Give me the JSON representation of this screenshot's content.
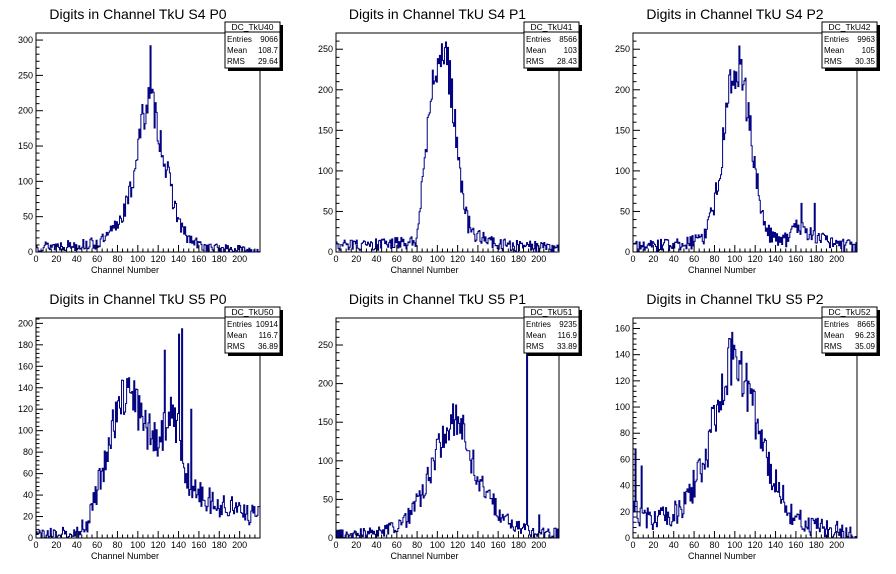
{
  "chart_data": [
    {
      "type": "histogram",
      "title": "Digits in Channel TkU S4 P0",
      "xlabel": "Channel Number",
      "xlim": [
        0,
        220
      ],
      "ylim": [
        0,
        310
      ],
      "xticks": [
        "0",
        "20",
        "40",
        "60",
        "80",
        "100",
        "120",
        "140",
        "160",
        "180",
        "200"
      ],
      "yticks": [
        "0",
        "50",
        "100",
        "150",
        "200",
        "250",
        "300"
      ],
      "yvals": [
        0,
        50,
        100,
        150,
        200,
        250,
        300
      ],
      "stats": {
        "name": "DC_TkU40",
        "rows": [
          {
            "label": "Entries",
            "value": "9066"
          },
          {
            "label": "Mean",
            "value": "108.7"
          },
          {
            "label": "RMS",
            "value": "29.64"
          }
        ]
      },
      "peaks": [
        {
          "x": 112,
          "y": 292
        }
      ],
      "profile": [
        [
          0,
          8
        ],
        [
          20,
          9
        ],
        [
          40,
          10
        ],
        [
          60,
          12
        ],
        [
          70,
          20
        ],
        [
          80,
          40
        ],
        [
          90,
          70
        ],
        [
          95,
          100
        ],
        [
          100,
          150
        ],
        [
          105,
          190
        ],
        [
          110,
          215
        ],
        [
          115,
          210
        ],
        [
          120,
          175
        ],
        [
          125,
          140
        ],
        [
          130,
          105
        ],
        [
          135,
          75
        ],
        [
          140,
          45
        ],
        [
          145,
          28
        ],
        [
          150,
          18
        ],
        [
          160,
          10
        ],
        [
          170,
          6
        ],
        [
          190,
          4
        ],
        [
          220,
          2
        ]
      ]
    },
    {
      "type": "histogram",
      "title": "Digits in Channel TkU S4 P1",
      "xlabel": "Channel Number",
      "xlim": [
        0,
        220
      ],
      "ylim": [
        0,
        270
      ],
      "xticks": [
        "0",
        "20",
        "40",
        "60",
        "80",
        "100",
        "120",
        "140",
        "160",
        "180",
        "200"
      ],
      "yticks": [
        "0",
        "50",
        "100",
        "150",
        "200",
        "250"
      ],
      "yvals": [
        0,
        50,
        100,
        150,
        200,
        250
      ],
      "stats": {
        "name": "DC_TkU41",
        "rows": [
          {
            "label": "Entries",
            "value": "8566"
          },
          {
            "label": "Mean",
            "value": "103"
          },
          {
            "label": "RMS",
            "value": "28.43"
          }
        ]
      },
      "peaks": [
        {
          "x": 107,
          "y": 252
        }
      ],
      "profile": [
        [
          0,
          8
        ],
        [
          20,
          8
        ],
        [
          40,
          9
        ],
        [
          60,
          10
        ],
        [
          75,
          12
        ],
        [
          80,
          14
        ],
        [
          82,
          40
        ],
        [
          85,
          80
        ],
        [
          90,
          150
        ],
        [
          95,
          200
        ],
        [
          100,
          230
        ],
        [
          105,
          240
        ],
        [
          110,
          235
        ],
        [
          115,
          190
        ],
        [
          120,
          125
        ],
        [
          125,
          70
        ],
        [
          130,
          35
        ],
        [
          140,
          20
        ],
        [
          150,
          12
        ],
        [
          165,
          9
        ],
        [
          180,
          7
        ],
        [
          200,
          6
        ],
        [
          220,
          5
        ]
      ]
    },
    {
      "type": "histogram",
      "title": "Digits in Channel TkU S4 P2",
      "xlabel": "Channel Number",
      "xlim": [
        0,
        220
      ],
      "ylim": [
        0,
        270
      ],
      "xticks": [
        "0",
        "20",
        "40",
        "60",
        "80",
        "100",
        "120",
        "140",
        "160",
        "180",
        "200"
      ],
      "yticks": [
        "0",
        "50",
        "100",
        "150",
        "200",
        "250"
      ],
      "yvals": [
        0,
        50,
        100,
        150,
        200,
        250
      ],
      "stats": {
        "name": "DC_TkU42",
        "rows": [
          {
            "label": "Entries",
            "value": "9963"
          },
          {
            "label": "Mean",
            "value": "105"
          },
          {
            "label": "RMS",
            "value": "30.35"
          }
        ]
      },
      "peaks": [
        {
          "x": 104,
          "y": 254
        },
        {
          "x": 165,
          "y": 60
        },
        {
          "x": 178,
          "y": 60
        }
      ],
      "profile": [
        [
          0,
          6
        ],
        [
          20,
          8
        ],
        [
          40,
          9
        ],
        [
          60,
          12
        ],
        [
          70,
          20
        ],
        [
          75,
          35
        ],
        [
          80,
          60
        ],
        [
          85,
          100
        ],
        [
          90,
          150
        ],
        [
          95,
          200
        ],
        [
          100,
          225
        ],
        [
          105,
          220
        ],
        [
          110,
          195
        ],
        [
          115,
          150
        ],
        [
          120,
          110
        ],
        [
          125,
          60
        ],
        [
          130,
          25
        ],
        [
          140,
          18
        ],
        [
          150,
          15
        ],
        [
          160,
          30
        ],
        [
          170,
          25
        ],
        [
          180,
          20
        ],
        [
          190,
          12
        ],
        [
          200,
          10
        ],
        [
          210,
          8
        ],
        [
          220,
          6
        ]
      ]
    },
    {
      "type": "histogram",
      "title": "Digits in Channel TkU S5 P0",
      "xlabel": "Channel Number",
      "xlim": [
        0,
        220
      ],
      "ylim": [
        0,
        205
      ],
      "xticks": [
        "0",
        "20",
        "40",
        "60",
        "80",
        "100",
        "120",
        "140",
        "160",
        "180",
        "200"
      ],
      "yticks": [
        "0",
        "20",
        "40",
        "60",
        "80",
        "100",
        "120",
        "140",
        "160",
        "180",
        "200"
      ],
      "yvals": [
        0,
        20,
        40,
        60,
        80,
        100,
        120,
        140,
        160,
        180,
        200
      ],
      "stats": {
        "name": "DC_TkU50",
        "rows": [
          {
            "label": "Entries",
            "value": "10914"
          },
          {
            "label": "Mean",
            "value": "116.7"
          },
          {
            "label": "RMS",
            "value": "36.89"
          }
        ]
      },
      "peaks": [
        {
          "x": 126,
          "y": 175
        },
        {
          "x": 140,
          "y": 190
        },
        {
          "x": 143,
          "y": 195
        },
        {
          "x": 152,
          "y": 120
        }
      ],
      "profile": [
        [
          0,
          3
        ],
        [
          20,
          4
        ],
        [
          40,
          6
        ],
        [
          50,
          12
        ],
        [
          55,
          25
        ],
        [
          60,
          45
        ],
        [
          65,
          60
        ],
        [
          70,
          80
        ],
        [
          75,
          100
        ],
        [
          80,
          120
        ],
        [
          85,
          130
        ],
        [
          90,
          135
        ],
        [
          95,
          130
        ],
        [
          100,
          120
        ],
        [
          105,
          110
        ],
        [
          110,
          100
        ],
        [
          115,
          95
        ],
        [
          120,
          90
        ],
        [
          125,
          100
        ],
        [
          130,
          110
        ],
        [
          135,
          115
        ],
        [
          140,
          100
        ],
        [
          145,
          70
        ],
        [
          150,
          55
        ],
        [
          160,
          40
        ],
        [
          170,
          35
        ],
        [
          180,
          30
        ],
        [
          190,
          28
        ],
        [
          200,
          25
        ],
        [
          210,
          22
        ],
        [
          220,
          20
        ]
      ]
    },
    {
      "type": "histogram",
      "title": "Digits in Channel TkU S5 P1",
      "xlabel": "Channel Number",
      "xlim": [
        0,
        220
      ],
      "ylim": [
        0,
        285
      ],
      "xticks": [
        "0",
        "20",
        "40",
        "60",
        "80",
        "100",
        "120",
        "140",
        "160",
        "180",
        "200"
      ],
      "yticks": [
        "0",
        "50",
        "100",
        "150",
        "200",
        "250"
      ],
      "yvals": [
        0,
        50,
        100,
        150,
        200,
        250
      ],
      "stats": {
        "name": "DC_TkU51",
        "rows": [
          {
            "label": "Entries",
            "value": "9235"
          },
          {
            "label": "Mean",
            "value": "116.9"
          },
          {
            "label": "RMS",
            "value": "33.89"
          }
        ]
      },
      "peaks": [
        {
          "x": 188,
          "y": 272
        },
        {
          "x": 200,
          "y": 30
        }
      ],
      "profile": [
        [
          0,
          4
        ],
        [
          20,
          6
        ],
        [
          40,
          8
        ],
        [
          60,
          14
        ],
        [
          70,
          25
        ],
        [
          80,
          45
        ],
        [
          90,
          75
        ],
        [
          100,
          110
        ],
        [
          105,
          130
        ],
        [
          110,
          145
        ],
        [
          115,
          152
        ],
        [
          120,
          150
        ],
        [
          125,
          140
        ],
        [
          130,
          115
        ],
        [
          140,
          80
        ],
        [
          150,
          55
        ],
        [
          160,
          35
        ],
        [
          170,
          22
        ],
        [
          180,
          14
        ],
        [
          190,
          10
        ],
        [
          200,
          8
        ],
        [
          220,
          6
        ]
      ]
    },
    {
      "type": "histogram",
      "title": "Digits in Channel TkU S5 P2",
      "xlabel": "Channel Number",
      "xlim": [
        0,
        220
      ],
      "ylim": [
        0,
        168
      ],
      "xticks": [
        "0",
        "20",
        "40",
        "60",
        "80",
        "100",
        "120",
        "140",
        "160",
        "180",
        "200"
      ],
      "yticks": [
        "0",
        "20",
        "40",
        "60",
        "80",
        "100",
        "120",
        "140",
        "160"
      ],
      "yvals": [
        0,
        20,
        40,
        60,
        80,
        100,
        120,
        140,
        160
      ],
      "stats": {
        "name": "DC_TkU52",
        "rows": [
          {
            "label": "Entries",
            "value": "8665"
          },
          {
            "label": "Mean",
            "value": "96.23"
          },
          {
            "label": "RMS",
            "value": "35.09"
          }
        ]
      },
      "peaks": [
        {
          "x": 2,
          "y": 68
        },
        {
          "x": 8,
          "y": 55
        },
        {
          "x": 97,
          "y": 157
        },
        {
          "x": 140,
          "y": 52
        }
      ],
      "profile": [
        [
          0,
          20
        ],
        [
          10,
          18
        ],
        [
          20,
          15
        ],
        [
          30,
          15
        ],
        [
          40,
          18
        ],
        [
          50,
          25
        ],
        [
          60,
          40
        ],
        [
          70,
          60
        ],
        [
          80,
          90
        ],
        [
          85,
          110
        ],
        [
          90,
          125
        ],
        [
          95,
          135
        ],
        [
          100,
          135
        ],
        [
          105,
          130
        ],
        [
          110,
          120
        ],
        [
          115,
          110
        ],
        [
          120,
          95
        ],
        [
          125,
          80
        ],
        [
          130,
          65
        ],
        [
          135,
          50
        ],
        [
          140,
          40
        ],
        [
          150,
          25
        ],
        [
          160,
          15
        ],
        [
          170,
          10
        ],
        [
          180,
          8
        ],
        [
          200,
          6
        ],
        [
          220,
          4
        ]
      ]
    }
  ]
}
